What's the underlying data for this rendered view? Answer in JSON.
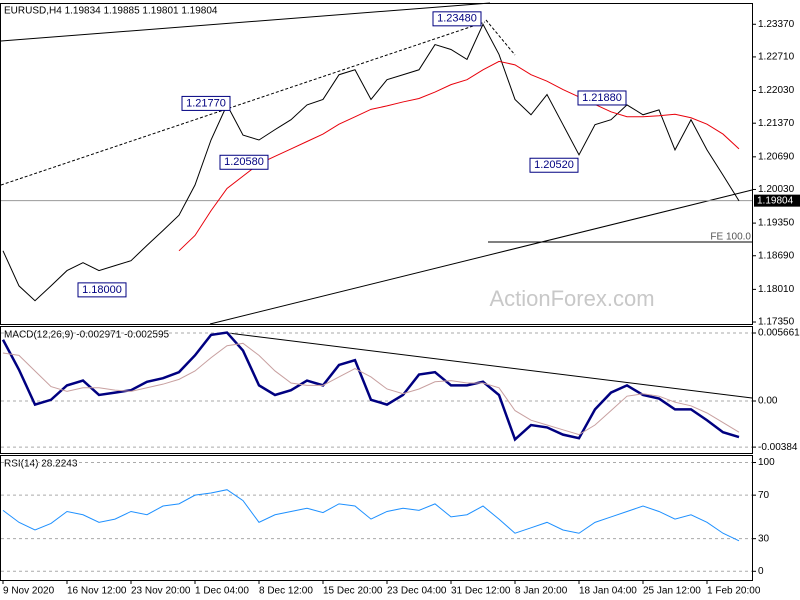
{
  "chart_data": [
    {
      "type": "line",
      "title": "EURUSD,H4  1.19834 1.19885 1.19801 1.19804",
      "watermark": "ActionForex.com",
      "ylim": [
        1.1731,
        1.2378
      ],
      "yticks": [
        {
          "value": 1.2337,
          "label": "1.23370"
        },
        {
          "value": 1.2271,
          "label": "1.22710"
        },
        {
          "value": 1.2203,
          "label": "1.22030"
        },
        {
          "value": 1.2137,
          "label": "1.21370"
        },
        {
          "value": 1.2069,
          "label": "1.20690"
        },
        {
          "value": 1.2003,
          "label": "1.20030"
        },
        {
          "value": 1.1935,
          "label": "1.19350"
        },
        {
          "value": 1.1869,
          "label": "1.18690"
        },
        {
          "value": 1.1801,
          "label": "1.18010"
        },
        {
          "value": 1.1735,
          "label": "1.17350"
        }
      ],
      "series": [
        {
          "name": "EURUSD",
          "color": "#000000",
          "values": [
            1.1879,
            1.1808,
            1.1778,
            1.1808,
            1.1839,
            1.1855,
            1.1839,
            1.1849,
            1.1859,
            1.189,
            1.192,
            1.1951,
            1.2012,
            1.2103,
            1.2174,
            1.2113,
            1.2103,
            1.2124,
            1.2144,
            1.2174,
            1.2185,
            1.2235,
            1.2245,
            1.2185,
            1.2225,
            1.2235,
            1.2245,
            1.2296,
            1.2286,
            1.2266,
            1.2337,
            1.2276,
            1.2185,
            1.2154,
            1.2195,
            1.2134,
            1.2073,
            1.2134,
            1.2144,
            1.2174,
            1.2154,
            1.2164,
            1.2083,
            1.2144,
            1.2083,
            1.2032,
            1.198
          ]
        },
        {
          "name": "MA",
          "color": "#e8000b",
          "values": [
            null,
            null,
            null,
            null,
            null,
            null,
            null,
            null,
            null,
            null,
            null,
            1.1879,
            1.191,
            1.196,
            1.2005,
            1.203,
            1.2055,
            1.207,
            1.2085,
            1.21,
            1.2115,
            1.2135,
            1.215,
            1.2165,
            1.2172,
            1.218,
            1.2187,
            1.22,
            1.2215,
            1.2225,
            1.2245,
            1.2262,
            1.2255,
            1.2235,
            1.2222,
            1.2205,
            1.219,
            1.2175,
            1.216,
            1.215,
            1.215,
            1.2152,
            1.2155,
            1.2148,
            1.2135,
            1.2115,
            1.2085
          ]
        }
      ],
      "annotations": [
        {
          "value": 1.2348,
          "label": "1.23480"
        },
        {
          "value": 1.2177,
          "label": "1.21770"
        },
        {
          "value": 1.2058,
          "label": "1.20580"
        },
        {
          "value": 1.18,
          "label": "1.18000"
        },
        {
          "value": 1.2052,
          "label": "1.20520"
        },
        {
          "value": 1.2188,
          "label": "1.21880"
        }
      ],
      "fe_label": "FE 100.0",
      "last_price": {
        "value": 1.19804,
        "label": "1.19804"
      }
    },
    {
      "type": "line",
      "title": "MACD(12,26,9) -0.002971 -0.002595",
      "ylim": [
        -0.00433,
        0.00616
      ],
      "yticks": [
        0.005661,
        {
          "value": 0,
          "label": "0.00"
        },
        -0.00384
      ],
      "series": [
        {
          "name": "MACD",
          "color": "#000080",
          "values": [
            0.0051,
            0.0026,
            -0.0003,
            0.0001,
            0.0013,
            0.0017,
            0.0005,
            0.0007,
            0.0009,
            0.0016,
            0.0019,
            0.0024,
            0.0038,
            0.0055,
            0.0057,
            0.0042,
            0.0013,
            0.0005,
            0.0009,
            0.0017,
            0.0013,
            0.003,
            0.0034,
            0.0001,
            -0.0003,
            0.0005,
            0.0022,
            0.0024,
            0.0013,
            0.0013,
            0.0016,
            0.0005,
            -0.0032,
            -0.002,
            -0.0022,
            -0.0028,
            -0.0031,
            -0.0007,
            0.0007,
            0.0013,
            0.0005,
            0.0002,
            -0.0007,
            -0.0007,
            -0.0016,
            -0.0026,
            -0.003
          ]
        },
        {
          "name": "Signal",
          "color": "#c8a0a0",
          "values": [
            0.004,
            0.0038,
            0.0025,
            0.0012,
            0.0008,
            0.0011,
            0.0011,
            0.0009,
            0.0008,
            0.0011,
            0.0014,
            0.0018,
            0.0025,
            0.0036,
            0.0046,
            0.0048,
            0.0038,
            0.0025,
            0.0015,
            0.0013,
            0.0013,
            0.002,
            0.0027,
            0.002,
            0.001,
            0.0006,
            0.001,
            0.0016,
            0.0017,
            0.0015,
            0.0015,
            0.0011,
            -0.0008,
            -0.0016,
            -0.002,
            -0.0024,
            -0.0028,
            -0.002,
            -0.0008,
            0.0004,
            0.0006,
            0.0004,
            -0.0001,
            -0.0004,
            -0.001,
            -0.0018,
            -0.0026
          ]
        }
      ]
    },
    {
      "type": "line",
      "title": "RSI(14) 28.2243",
      "ylim": [
        -8,
        106
      ],
      "yticks": [
        100,
        70,
        30,
        0
      ],
      "categories": [
        "9 Nov 2020",
        null,
        null,
        null,
        "16 Nov 12:00",
        null,
        null,
        null,
        "23 Nov 20:00",
        null,
        null,
        null,
        "1 Dec 04:00",
        null,
        null,
        null,
        "8 Dec 12:00",
        null,
        null,
        null,
        "15 Dec 20:00",
        null,
        null,
        null,
        "23 Dec 04:00",
        null,
        null,
        null,
        "31 Dec 12:00",
        null,
        null,
        null,
        "8 Jan 20:00",
        null,
        null,
        null,
        "18 Jan 04:00",
        null,
        null,
        null,
        "25 Jan 12:00",
        null,
        null,
        null,
        "1 Feb 20:00",
        null,
        null
      ],
      "series": [
        {
          "name": "RSI",
          "color": "#1e90ff",
          "values": [
            56,
            45,
            38,
            44,
            55,
            52,
            45,
            48,
            55,
            52,
            60,
            62,
            70,
            72,
            75,
            65,
            45,
            52,
            55,
            58,
            54,
            62,
            60,
            48,
            55,
            58,
            56,
            62,
            50,
            52,
            60,
            48,
            35,
            40,
            45,
            38,
            35,
            45,
            50,
            55,
            60,
            55,
            48,
            52,
            45,
            35,
            28
          ]
        }
      ]
    }
  ]
}
